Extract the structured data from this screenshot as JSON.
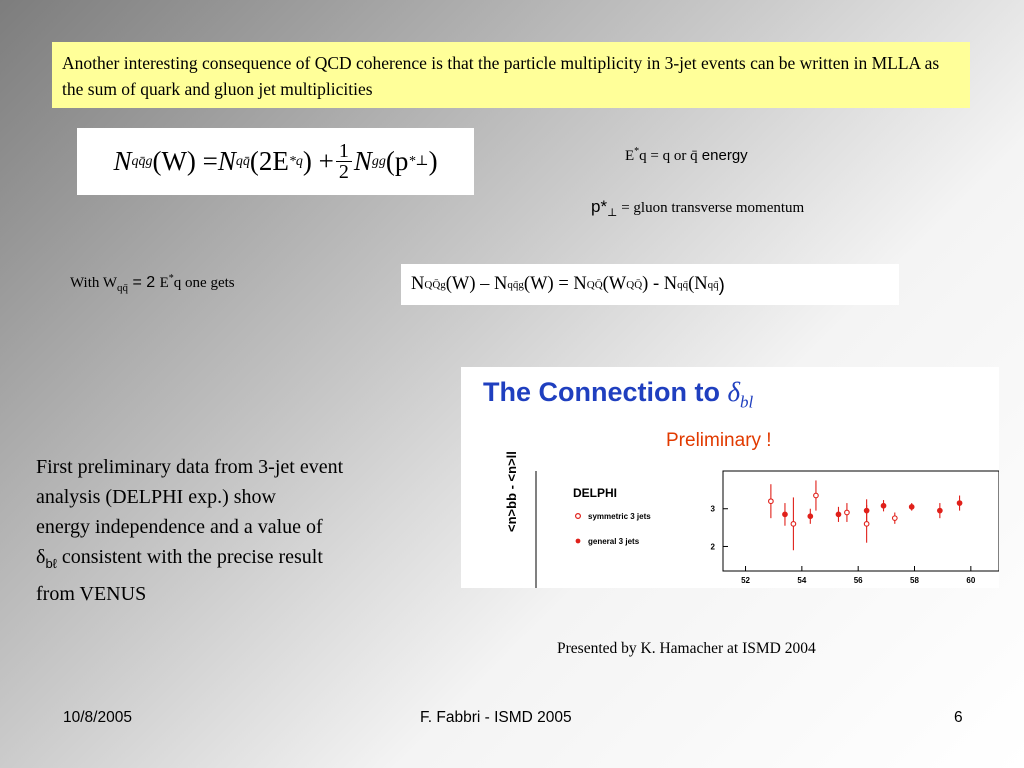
{
  "intro": {
    "text": "Another interesting consequence of QCD coherence is that the particle multiplicity in 3-jet events can be written in MLLA as the sum of quark and gluon jet multiplicities"
  },
  "formula": {
    "lhs": "N",
    "lhs_sub": "qq̄g",
    "lhs_arg": "(W) = ",
    "t1": "N",
    "t1_sub": "qq̄",
    "t1_arg": "(2E",
    "t1_arg2": "*",
    "t1_sub2": "q",
    "t1_close": ") + ",
    "half_num": "1",
    "half_den": "2",
    "t2": "N",
    "t2_sub": "gg",
    "t2_arg": "(p",
    "t2_sup": "*",
    "t2_sub2": "⊥",
    "t2_close": ")"
  },
  "notes": {
    "e_def_main": "E",
    "e_def_sup": "*",
    "e_def_rest": "q = q or q̄",
    "e_def_word": " energy",
    "p_def_sym": "p*",
    "p_def_perp": "⊥",
    "p_def_rest": " = gluon transverse momentum"
  },
  "with_line": {
    "w_prefix": "With  W",
    "w_sub": "qq̄",
    "w_eq": " = 2 ",
    "e_sym": "E",
    "e_sup": "*",
    "tail": "q one gets"
  },
  "equation": {
    "n1": "N",
    "s1": "QQ̄g",
    "a1": " (W) – N",
    "s2": "qq̄g",
    "a2": " (W) = N",
    "s3": "QQ̄",
    "a3": " (W",
    "s4": "QQ̄",
    "a4": " ) - N",
    "s5": "qq̄",
    "a5": " (N",
    "s6": "qq̄",
    "a6": " )"
  },
  "plot": {
    "title_prefix": "The Connection to ",
    "title_symbol": "δ",
    "title_sub": "bl",
    "subtitle": "Preliminary !",
    "experiment": "DELPHI",
    "legend_open": "symmetric 3 jets",
    "legend_filled": "general 3 jets",
    "y_label": "<n>bb - <n>ll",
    "marker_color": "#e0201a"
  },
  "chart_data": {
    "type": "scatter",
    "title": "",
    "xlabel": "",
    "ylabel": "<n>bb - <n>ll",
    "x_ticks": [
      52,
      54,
      56,
      58,
      60
    ],
    "y_ticks": [
      2,
      3
    ],
    "xlim": [
      51.2,
      61.0
    ],
    "ylim": [
      1.35,
      4.0
    ],
    "legend": "top-left",
    "series": [
      {
        "name": "symmetric 3 jets",
        "marker": "open-circle",
        "points": [
          {
            "x": 52.9,
            "y": 3.2,
            "err": 0.45
          },
          {
            "x": 53.7,
            "y": 2.6,
            "err": 0.7
          },
          {
            "x": 54.5,
            "y": 3.35,
            "err": 0.4
          },
          {
            "x": 55.6,
            "y": 2.9,
            "err": 0.25
          },
          {
            "x": 56.3,
            "y": 2.6,
            "err": 0.5
          },
          {
            "x": 57.3,
            "y": 2.75,
            "err": 0.15
          }
        ]
      },
      {
        "name": "general 3 jets",
        "marker": "filled-circle",
        "points": [
          {
            "x": 53.4,
            "y": 2.85,
            "err": 0.3
          },
          {
            "x": 54.3,
            "y": 2.8,
            "err": 0.2
          },
          {
            "x": 55.3,
            "y": 2.85,
            "err": 0.2
          },
          {
            "x": 56.3,
            "y": 2.95,
            "err": 0.3
          },
          {
            "x": 56.9,
            "y": 3.08,
            "err": 0.15
          },
          {
            "x": 57.9,
            "y": 3.05,
            "err": 0.1
          },
          {
            "x": 58.9,
            "y": 2.95,
            "err": 0.2
          },
          {
            "x": 59.6,
            "y": 3.15,
            "err": 0.2
          }
        ]
      }
    ]
  },
  "left_paragraph": {
    "line1": "First preliminary data from 3-jet event",
    "line2": "analysis (DELPHI exp.) show",
    "line3": "energy independence and a value of",
    "delta": "δ",
    "delta_sub": "bℓ",
    "line4_rest": "  consistent with the precise result",
    "line5": "from VENUS"
  },
  "credit": "Presented by  K. Hamacher at ISMD 2004",
  "footer": {
    "date": "10/8/2005",
    "center": "F. Fabbri - ISMD 2005",
    "page": "6"
  }
}
